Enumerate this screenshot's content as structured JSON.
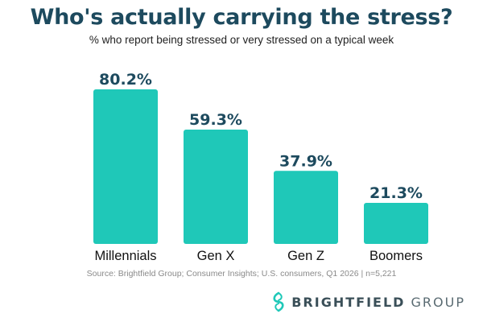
{
  "chart_data": {
    "type": "bar",
    "title": "Who's actually carrying the stress?",
    "subtitle": "% who report being stressed or very stressed on a typical week",
    "categories": [
      "Millennials",
      "Gen X",
      "Gen Z",
      "Boomers"
    ],
    "values": [
      80.2,
      59.3,
      37.9,
      21.3
    ],
    "value_labels": [
      "80.2%",
      "59.3%",
      "37.9%",
      "21.3%"
    ],
    "unit": "%",
    "ylim": [
      0,
      100
    ],
    "grid": false,
    "legend": "none",
    "xlabel": "",
    "ylabel": "",
    "bar_color": "#1fc8b8",
    "value_label_color": "#1d4a5e"
  },
  "source": "Source: Brightfield Group; Consumer Insights; U.S. consumers, Q1 2026 | n=5,221",
  "brand": {
    "name_part1": "BRIGHTFIELD",
    "name_part2": " GROUP",
    "logo_icon": "brightfield-leaf-icon",
    "logo_color": "#1fc8b8"
  },
  "colors": {
    "title": "#1d4a5e",
    "text": "#222222",
    "source": "#8a8a8a"
  }
}
